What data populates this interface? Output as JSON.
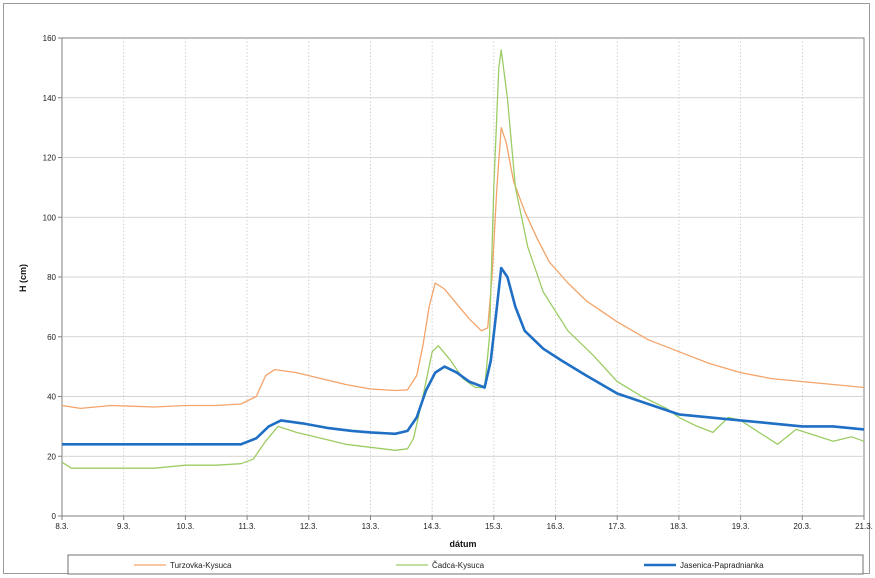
{
  "chart_data": {
    "type": "line",
    "xlabel": "dátum",
    "ylabel": "H (cm)",
    "ylim": [
      0,
      160
    ],
    "yticks": [
      0,
      20,
      40,
      60,
      80,
      100,
      120,
      140,
      160
    ],
    "xlim": [
      8,
      21
    ],
    "xticks": [
      {
        "v": 8,
        "label": "8.3."
      },
      {
        "v": 9,
        "label": "9.3."
      },
      {
        "v": 10,
        "label": "10.3."
      },
      {
        "v": 11,
        "label": "11.3."
      },
      {
        "v": 12,
        "label": "12.3."
      },
      {
        "v": 13,
        "label": "13.3."
      },
      {
        "v": 14,
        "label": "14.3."
      },
      {
        "v": 15,
        "label": "15.3."
      },
      {
        "v": 16,
        "label": "16.3."
      },
      {
        "v": 17,
        "label": "17.3."
      },
      {
        "v": 18,
        "label": "18.3."
      },
      {
        "v": 19,
        "label": "19.3."
      },
      {
        "v": 20,
        "label": "20.3."
      },
      {
        "v": 21,
        "label": "21.3."
      }
    ],
    "grid": true,
    "legend_position": "bottom",
    "series": [
      {
        "name": "Turzovka-Kysuca",
        "color": "#f4a46a",
        "width": 1.3,
        "points": [
          [
            8,
            37
          ],
          [
            8.3,
            36
          ],
          [
            8.8,
            37
          ],
          [
            9.5,
            36.5
          ],
          [
            10,
            37
          ],
          [
            10.5,
            37
          ],
          [
            10.9,
            37.5
          ],
          [
            11.15,
            40
          ],
          [
            11.3,
            47
          ],
          [
            11.45,
            49
          ],
          [
            11.8,
            48
          ],
          [
            12.2,
            46
          ],
          [
            12.6,
            44
          ],
          [
            13,
            42.5
          ],
          [
            13.4,
            42
          ],
          [
            13.6,
            42.2
          ],
          [
            13.75,
            47
          ],
          [
            13.85,
            57
          ],
          [
            13.95,
            70
          ],
          [
            14.05,
            78
          ],
          [
            14.2,
            76
          ],
          [
            14.4,
            71
          ],
          [
            14.6,
            66
          ],
          [
            14.8,
            62
          ],
          [
            14.9,
            63
          ],
          [
            14.97,
            80
          ],
          [
            15.05,
            110
          ],
          [
            15.12,
            130
          ],
          [
            15.2,
            125
          ],
          [
            15.32,
            112
          ],
          [
            15.5,
            102
          ],
          [
            15.7,
            93
          ],
          [
            15.9,
            85
          ],
          [
            16.2,
            78
          ],
          [
            16.5,
            72
          ],
          [
            17,
            65
          ],
          [
            17.5,
            59
          ],
          [
            18,
            55
          ],
          [
            18.5,
            51
          ],
          [
            19,
            48
          ],
          [
            19.5,
            46
          ],
          [
            20,
            45
          ],
          [
            20.5,
            44
          ],
          [
            21,
            43
          ]
        ]
      },
      {
        "name": "Čadca-Kysuca",
        "color": "#9ccc64",
        "width": 1.3,
        "points": [
          [
            8,
            18
          ],
          [
            8.15,
            16
          ],
          [
            8.5,
            16
          ],
          [
            9,
            16
          ],
          [
            9.5,
            16
          ],
          [
            10,
            17
          ],
          [
            10.5,
            17
          ],
          [
            10.9,
            17.5
          ],
          [
            11.1,
            19
          ],
          [
            11.3,
            25
          ],
          [
            11.5,
            30
          ],
          [
            11.8,
            28
          ],
          [
            12.2,
            26
          ],
          [
            12.6,
            24
          ],
          [
            13,
            23
          ],
          [
            13.4,
            22
          ],
          [
            13.6,
            22.5
          ],
          [
            13.7,
            26
          ],
          [
            13.85,
            40
          ],
          [
            14,
            55
          ],
          [
            14.1,
            57
          ],
          [
            14.3,
            52
          ],
          [
            14.5,
            46
          ],
          [
            14.7,
            43
          ],
          [
            14.85,
            43
          ],
          [
            14.93,
            60
          ],
          [
            15.0,
            110
          ],
          [
            15.08,
            150
          ],
          [
            15.12,
            156
          ],
          [
            15.22,
            140
          ],
          [
            15.35,
            110
          ],
          [
            15.55,
            90
          ],
          [
            15.8,
            75
          ],
          [
            16.2,
            62
          ],
          [
            16.6,
            54
          ],
          [
            17,
            45
          ],
          [
            17.4,
            40
          ],
          [
            17.8,
            36
          ],
          [
            18,
            33
          ],
          [
            18.3,
            30
          ],
          [
            18.55,
            28
          ],
          [
            18.8,
            33
          ],
          [
            19,
            32
          ],
          [
            19.3,
            28
          ],
          [
            19.6,
            24
          ],
          [
            19.9,
            29
          ],
          [
            20.2,
            27
          ],
          [
            20.5,
            25
          ],
          [
            20.8,
            26.5
          ],
          [
            21,
            25
          ]
        ]
      },
      {
        "name": "Jasenica-Papradnianka",
        "color": "#1f6fc5",
        "width": 2.6,
        "points": [
          [
            8,
            24
          ],
          [
            8.5,
            24
          ],
          [
            9,
            24
          ],
          [
            9.5,
            24
          ],
          [
            10,
            24
          ],
          [
            10.5,
            24
          ],
          [
            10.9,
            24
          ],
          [
            11.15,
            26
          ],
          [
            11.35,
            30
          ],
          [
            11.55,
            32
          ],
          [
            11.9,
            31
          ],
          [
            12.3,
            29.5
          ],
          [
            12.7,
            28.5
          ],
          [
            13,
            28
          ],
          [
            13.4,
            27.5
          ],
          [
            13.6,
            28.5
          ],
          [
            13.75,
            33
          ],
          [
            13.9,
            42
          ],
          [
            14.05,
            48
          ],
          [
            14.2,
            50
          ],
          [
            14.4,
            48
          ],
          [
            14.6,
            45
          ],
          [
            14.85,
            43
          ],
          [
            14.95,
            52
          ],
          [
            15.05,
            70
          ],
          [
            15.12,
            83
          ],
          [
            15.22,
            80
          ],
          [
            15.35,
            70
          ],
          [
            15.5,
            62
          ],
          [
            15.8,
            56
          ],
          [
            16.1,
            52
          ],
          [
            16.5,
            47
          ],
          [
            17,
            41
          ],
          [
            17.5,
            37.5
          ],
          [
            18,
            34
          ],
          [
            18.5,
            33
          ],
          [
            19,
            32
          ],
          [
            19.5,
            31
          ],
          [
            20,
            30
          ],
          [
            20.5,
            30
          ],
          [
            21,
            29
          ]
        ]
      }
    ]
  }
}
